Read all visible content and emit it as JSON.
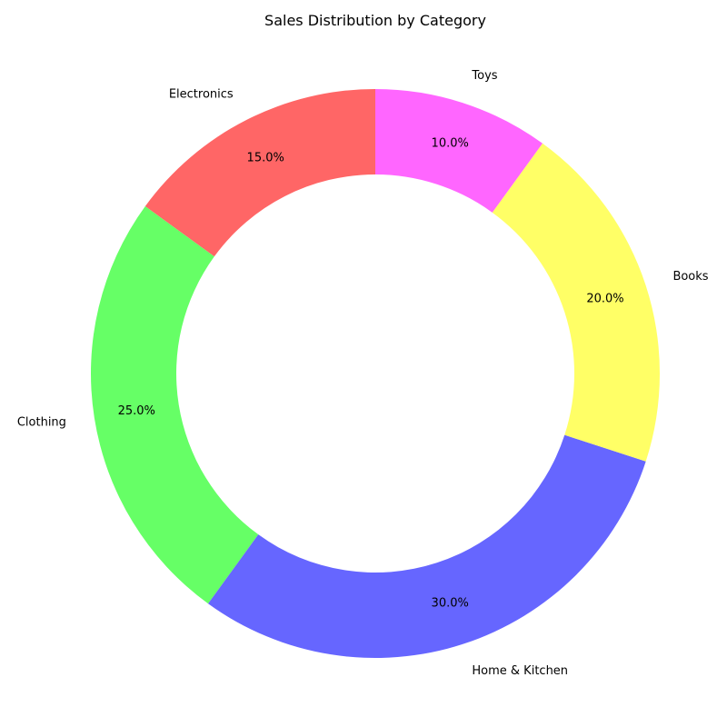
{
  "chart_data": {
    "type": "pie",
    "style": "donut",
    "title": "Sales Distribution by Category",
    "categories": [
      "Electronics",
      "Clothing",
      "Home & Kitchen",
      "Books",
      "Toys"
    ],
    "values": [
      15,
      25,
      30,
      20,
      10
    ],
    "percent_labels": [
      "15.0%",
      "25.0%",
      "30.0%",
      "20.0%",
      "10.0%"
    ],
    "colors": [
      "#ff6666",
      "#66ff66",
      "#6666ff",
      "#ffff66",
      "#ff66ff"
    ],
    "start_angle_deg": 90,
    "direction": "counterclockwise"
  }
}
